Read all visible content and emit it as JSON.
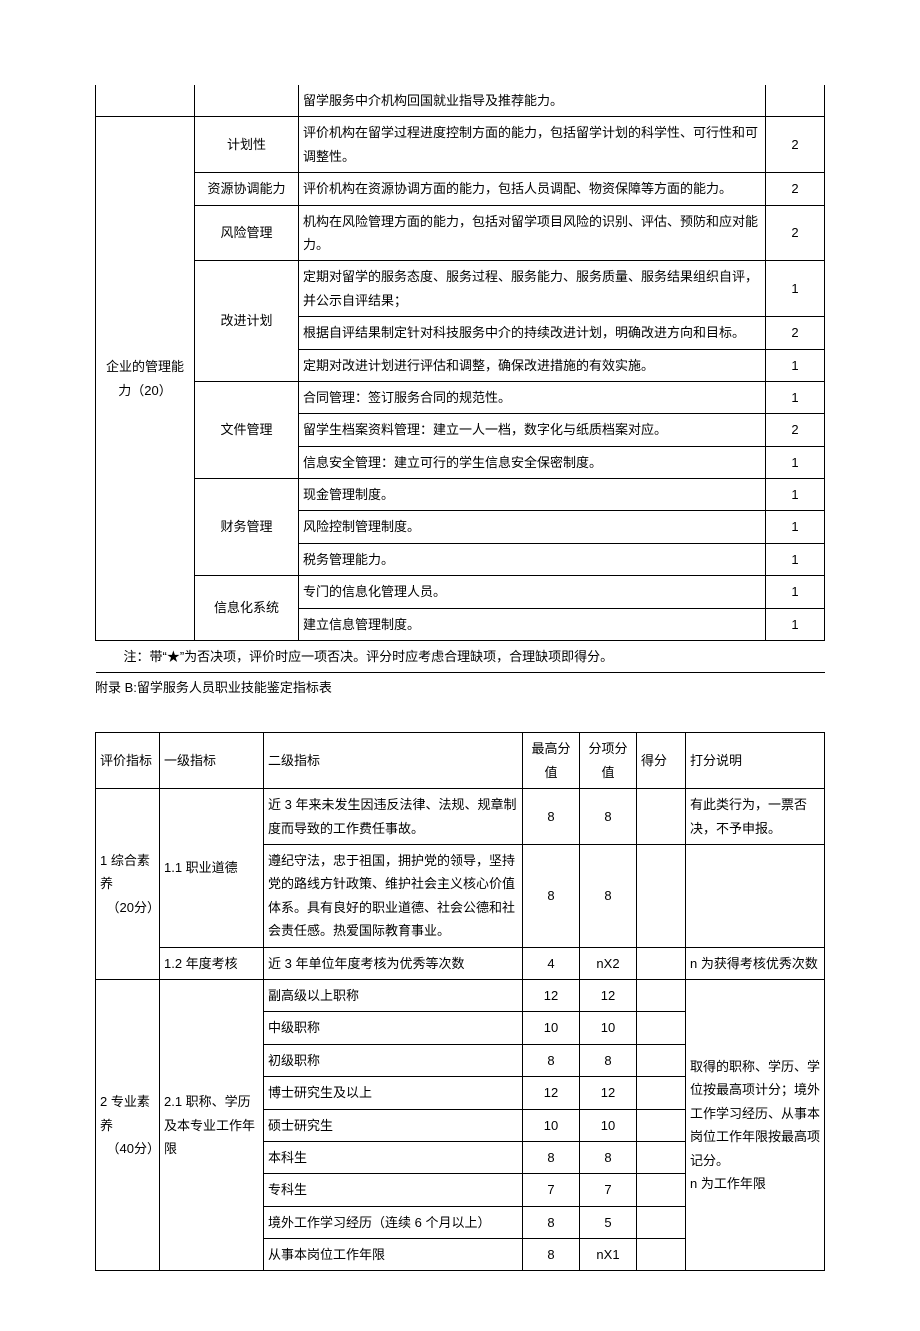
{
  "table1": {
    "row0_desc": "留学服务中介机构回国就业指导及推荐能力。",
    "category": "企业的管理能力（20）",
    "rows": [
      {
        "sub": "计划性",
        "desc": "评价机构在留学过程进度控制方面的能力，包括留学计划的科学性、可行性和可调整性。",
        "score": "2"
      },
      {
        "sub": "资源协调能力",
        "desc": "评价机构在资源协调方面的能力，包括人员调配、物资保障等方面的能力。",
        "score": "2"
      },
      {
        "sub": "风险管理",
        "desc": "机构在风险管理方面的能力，包括对留学项目风险的识别、评估、预防和应对能力。",
        "score": "2"
      },
      {
        "sub": "改进计划",
        "items": [
          {
            "desc": "定期对留学的服务态度、服务过程、服务能力、服务质量、服务结果组织自评，并公示自评结果；",
            "score": "1"
          },
          {
            "desc": "根据自评结果制定针对科技服务中介的持续改进计划，明确改进方向和目标。",
            "score": "2"
          },
          {
            "desc": "定期对改进计划进行评估和调整，确保改进措施的有效实施。",
            "score": "1"
          }
        ]
      },
      {
        "sub": "文件管理",
        "items": [
          {
            "desc": "合同管理：签订服务合同的规范性。",
            "score": "1"
          },
          {
            "desc": "留学生档案资料管理：建立一人一档，数字化与纸质档案对应。",
            "score": "2"
          },
          {
            "desc": "信息安全管理：建立可行的学生信息安全保密制度。",
            "score": "1"
          }
        ]
      },
      {
        "sub": "财务管理",
        "items": [
          {
            "desc": "现金管理制度。",
            "score": "1"
          },
          {
            "desc": "风险控制管理制度。",
            "score": "1"
          },
          {
            "desc": "税务管理能力。",
            "score": "1"
          }
        ]
      },
      {
        "sub": "信息化系统",
        "items": [
          {
            "desc": "专门的信息化管理人员。",
            "score": "1"
          },
          {
            "desc": "建立信息管理制度。",
            "score": "1"
          }
        ]
      }
    ],
    "note": "注：带“★”为否决项，评价时应一项否决。评分时应考虑合理缺项，合理缺项即得分。"
  },
  "appendix_title": "附录 B:留学服务人员职业技能鉴定指标表",
  "table2": {
    "headers": {
      "c1": "评价指标",
      "c2": "一级指标",
      "c3": "二级指标",
      "c4": "最高分值",
      "c5": "分项分值",
      "c6": "得分",
      "c7": "打分说明"
    },
    "group1": {
      "eval": "1 综合素养\n　（20分）",
      "lvl1a": "1.1 职业道德",
      "r1": {
        "desc": "近 3 年来未发生因违反法律、法规、规章制度而导致的工作费任事故。",
        "max": "8",
        "sub": "8",
        "note": "有此类行为，一票否决，不予申报。"
      },
      "r2": {
        "desc": "遵纪守法，忠于祖国，拥护党的领导，坚持党的路线方针政策、维护社会主义核心价值体系。具有良好的职业道德、社会公德和社会责任感。热爱国际教育事业。",
        "max": "8",
        "sub": "8",
        "note": ""
      },
      "lvl1b": "1.2 年度考核",
      "r3": {
        "desc": "近 3 年单位年度考核为优秀等次数",
        "max": "4",
        "sub": "nX2",
        "note": "n 为获得考核优秀次数"
      }
    },
    "group2": {
      "eval": "2 专业素养\n　（40分）",
      "lvl1": "2.1 职称、学历及本专业工作年限",
      "note": "取得的职称、学历、学位按最高项计分；境外工作学习经历、从事本岗位工作年限按最高项记分。\nn 为工作年限",
      "rows": [
        {
          "desc": "副高级以上职称",
          "max": "12",
          "sub": "12"
        },
        {
          "desc": "中级职称",
          "max": "10",
          "sub": "10"
        },
        {
          "desc": "初级职称",
          "max": "8",
          "sub": "8"
        },
        {
          "desc": "博士研究生及以上",
          "max": "12",
          "sub": "12"
        },
        {
          "desc": "硕士研究生",
          "max": "10",
          "sub": "10"
        },
        {
          "desc": "本科生",
          "max": "8",
          "sub": "8"
        },
        {
          "desc": "专科生",
          "max": "7",
          "sub": "7"
        },
        {
          "desc": "境外工作学习经历（连续 6 个月以上）",
          "max": "8",
          "sub": "5"
        },
        {
          "desc": "从事本岗位工作年限",
          "max": "8",
          "sub": "nX1"
        }
      ]
    }
  }
}
